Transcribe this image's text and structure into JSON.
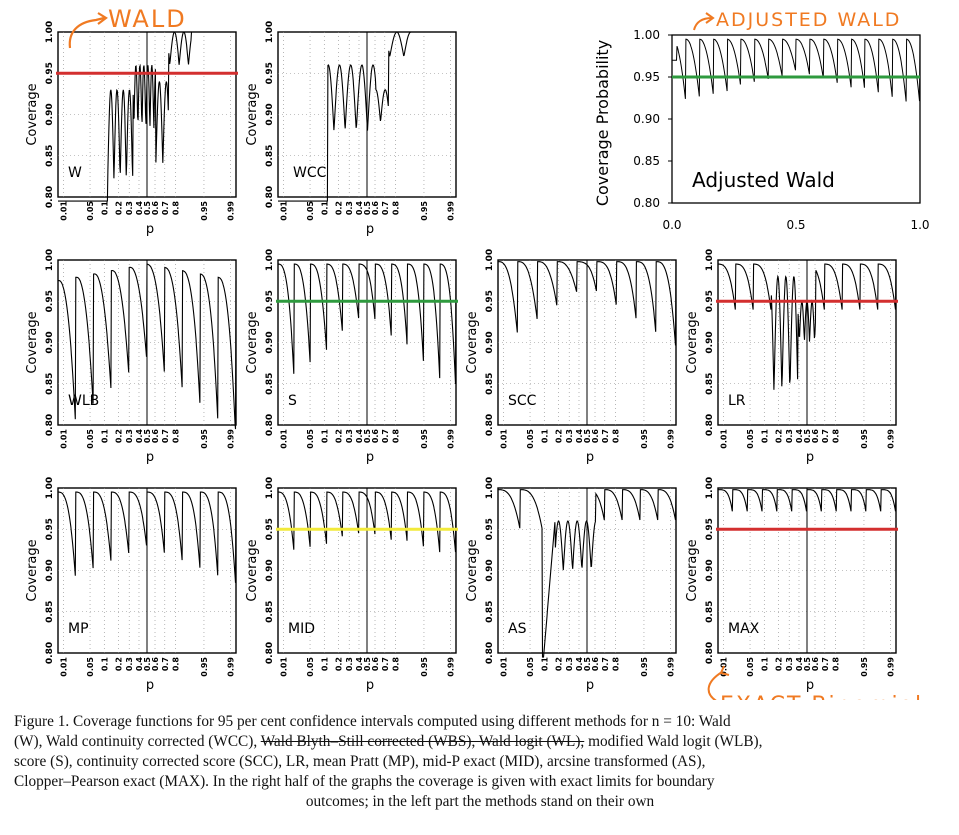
{
  "figure": {
    "panel_labels": [
      "W",
      "WCC",
      "WLB",
      "S",
      "SCC",
      "LR",
      "MP",
      "MID",
      "AS",
      "MAX"
    ],
    "small_y_label": "Coverage",
    "small_x_label": "p",
    "small_y_ticks": [
      "0.80",
      "0.85",
      "0.90",
      "0.95",
      "1.00"
    ],
    "small_x_ticks": [
      "0.01",
      "0.05",
      "0.1",
      "0.2",
      "0.3",
      "0.4",
      "0.5",
      "0.6",
      "0.7",
      "0.8",
      "0.95",
      "0.99"
    ],
    "adjusted": {
      "ylabel": "Coverage Probability",
      "label": "Adjusted Wald",
      "y_ticks": [
        "1.00",
        "0.95",
        "0.90",
        "0.85",
        "0.80"
      ],
      "x_ticks": [
        "0.0",
        "0.5",
        "1.0"
      ]
    },
    "reference_line_colors": {
      "red": "#d32f2f",
      "green": "#2e9a3e",
      "yellow": "#f2ea3a"
    },
    "annotations": {
      "wald": "WALD",
      "adjusted_wald": "ADJUSTED WALD",
      "exact_binomial": "EXACT Binomial",
      "color": "#f07a22"
    }
  },
  "caption": {
    "l1a": "Figure 1. Coverage functions for 95 per cent confidence intervals computed using different methods for n = 10: Wald",
    "l2a": "(W), Wald continuity corrected (WCC),",
    "l2b": "Wald Blyth–Still corrected (WBS), Wald logit (WL),",
    "l2c": "modified Wald logit (WLB),",
    "l3": "score (S), continuity corrected score (SCC), LR, mean Pratt (MP), mid-P exact (MID), arcsine transformed (AS),",
    "l4": "Clopper–Pearson exact (MAX). In the right half of the graphs the coverage is given with exact limits for boundary",
    "l5": "outcomes; in the left part the methods stand on their own"
  },
  "chart_data": [
    {
      "type": "line",
      "title": "",
      "panel_label": "W",
      "xlabel": "p",
      "ylabel": "Coverage",
      "ylim": [
        0.8,
        1.0
      ],
      "reference_line": 0.95,
      "reference_color": "red"
    },
    {
      "type": "line",
      "title": "",
      "panel_label": "WCC",
      "xlabel": "p",
      "ylabel": "Coverage",
      "ylim": [
        0.8,
        1.0
      ]
    },
    {
      "type": "line",
      "title": "",
      "panel_label": "Adjusted Wald",
      "xlabel": "",
      "ylabel": "Coverage Probability",
      "ylim": [
        0.8,
        1.0
      ],
      "xlim": [
        0.0,
        1.0
      ],
      "reference_line": 0.95,
      "reference_color": "green"
    },
    {
      "type": "line",
      "title": "",
      "panel_label": "WLB",
      "xlabel": "p",
      "ylabel": "Coverage",
      "ylim": [
        0.8,
        1.0
      ]
    },
    {
      "type": "line",
      "title": "",
      "panel_label": "S",
      "xlabel": "p",
      "ylabel": "Coverage",
      "ylim": [
        0.8,
        1.0
      ],
      "reference_line": 0.95,
      "reference_color": "green"
    },
    {
      "type": "line",
      "title": "",
      "panel_label": "SCC",
      "xlabel": "p",
      "ylabel": "Coverage",
      "ylim": [
        0.8,
        1.0
      ]
    },
    {
      "type": "line",
      "title": "",
      "panel_label": "LR",
      "xlabel": "p",
      "ylabel": "Coverage",
      "ylim": [
        0.8,
        1.0
      ],
      "reference_line": 0.95,
      "reference_color": "red"
    },
    {
      "type": "line",
      "title": "",
      "panel_label": "MP",
      "xlabel": "p",
      "ylabel": "Coverage",
      "ylim": [
        0.8,
        1.0
      ]
    },
    {
      "type": "line",
      "title": "",
      "panel_label": "MID",
      "xlabel": "p",
      "ylabel": "Coverage",
      "ylim": [
        0.8,
        1.0
      ],
      "reference_line": 0.95,
      "reference_color": "yellow"
    },
    {
      "type": "line",
      "title": "",
      "panel_label": "AS",
      "xlabel": "p",
      "ylabel": "Coverage",
      "ylim": [
        0.8,
        1.0
      ]
    },
    {
      "type": "line",
      "title": "",
      "panel_label": "MAX",
      "xlabel": "p",
      "ylabel": "Coverage",
      "ylim": [
        0.8,
        1.0
      ],
      "reference_line": 0.95,
      "reference_color": "red"
    }
  ]
}
